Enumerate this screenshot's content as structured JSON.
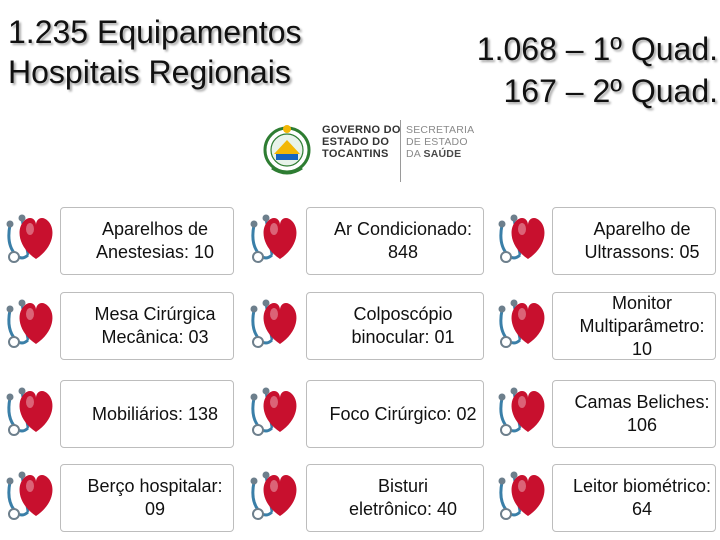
{
  "headline_left": {
    "line1": "1.235 Equipamentos",
    "line2": "Hospitais Regionais"
  },
  "headline_right": {
    "line1": "1.068 – 1º Quad.",
    "line2": "167 – 2º Quad."
  },
  "logo": {
    "gov_lines": [
      "GOVERNO DO",
      "ESTADO DO",
      "TOCANTINS"
    ],
    "sec_lines": [
      "SECRETARIA",
      "DE ESTADO"
    ],
    "sec_prefix": "DA ",
    "sec_bold": "SAÚDE"
  },
  "items": [
    [
      "Aparelhos de\nAnestesias: 10",
      "Ar Condicionado:\n848",
      "Aparelho de\nUltrassons: 05"
    ],
    [
      "Mesa Cirúrgica\nMecânica: 03",
      "Colposcópio\nbinocular: 01",
      "Monitor\nMultiparâmetro:\n10"
    ],
    [
      "Mobiliários: 138",
      "Foco Cirúrgico: 02",
      "Camas Beliches:\n106"
    ],
    [
      "Berço hospitalar:\n09",
      "Bisturi\neletrônico: 40",
      "Leitor biométrico:\n64"
    ]
  ],
  "colors": {
    "heart": "#c8102e",
    "stethoscope": "#3a7fa8",
    "logo_green": "#2e7d32",
    "logo_yellow": "#f2b705"
  }
}
